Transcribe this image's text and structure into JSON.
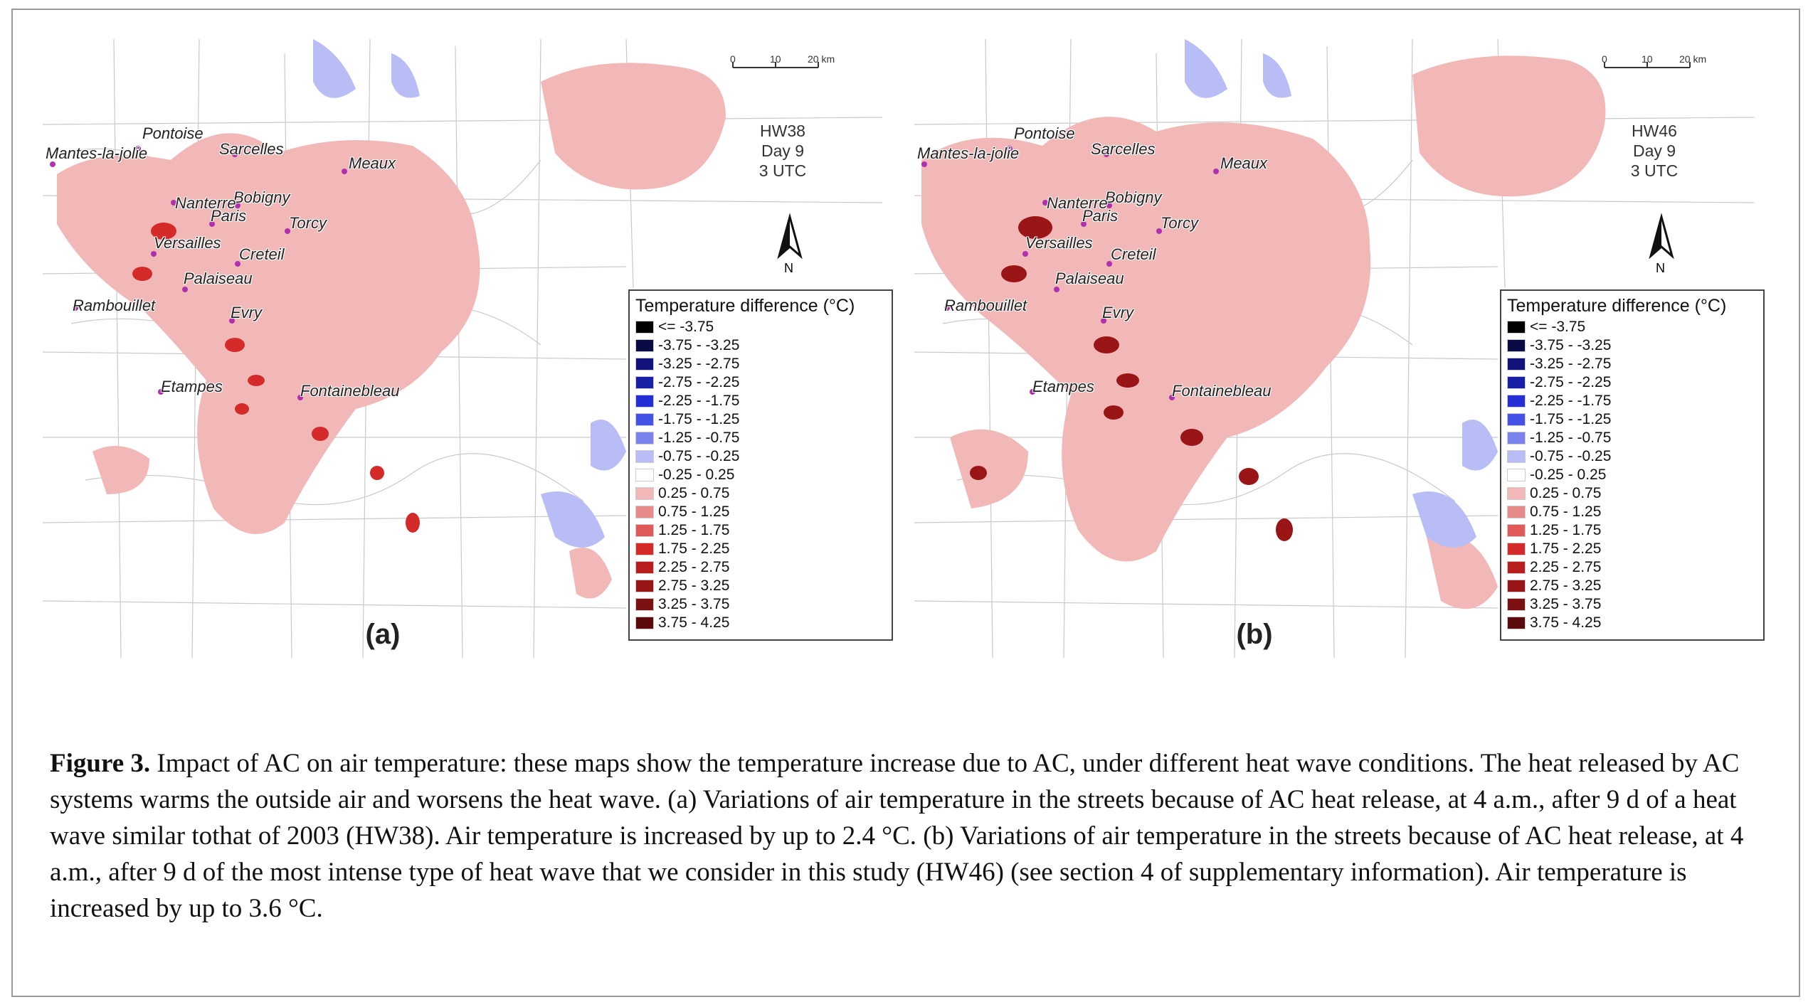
{
  "figure": {
    "caption_label": "Figure 3.",
    "caption_text": " Impact of AC on air temperature: these maps show the temperature increase due to AC, under different heat wave conditions. The heat released by AC systems warms the outside air and worsens the heat wave. (a) Variations of air temperature in the streets because of AC heat release, at 4 a.m., after 9 d of a heat wave similar tothat of 2003 (HW38). Air temperature is increased by up to 2.4 °C. (b) Variations of air temperature in the streets because of AC heat release, at 4 a.m., after 9 d of the most intense type of heat wave that we consider in this study (HW46) (see section 4 of supplementary information). Air temperature is increased by up to 3.6 °C."
  },
  "scale_bar": {
    "t0": "0",
    "t1": "10",
    "t2": "20 km"
  },
  "north_label": "N",
  "panels": [
    {
      "label": "(a)",
      "scenario": "HW38",
      "day": "Day 9",
      "time": "3 UTC"
    },
    {
      "label": "(b)",
      "scenario": "HW46",
      "day": "Day 9",
      "time": "3 UTC"
    }
  ],
  "cities": [
    "Pontoise",
    "Mantes-la-jolie",
    "Sarcelles",
    "Meaux",
    "Bobigny",
    "Nanterre",
    "Paris",
    "Torcy",
    "Versailles",
    "Creteil",
    "Palaiseau",
    "Rambouillet",
    "Evry",
    "Etampes",
    "Fontainebleau"
  ],
  "legend": {
    "title": "Temperature difference (°C)",
    "items": [
      {
        "label": "<= -3.75",
        "color": "#000000"
      },
      {
        "label": "-3.75 - -3.25",
        "color": "#0a0a45"
      },
      {
        "label": "-3.25 - -2.75",
        "color": "#12137a"
      },
      {
        "label": "-2.75 - -2.25",
        "color": "#1a1fa8"
      },
      {
        "label": "-2.25 - -1.75",
        "color": "#2430d6"
      },
      {
        "label": "-1.75 - -1.25",
        "color": "#4552e6"
      },
      {
        "label": "-1.25 - -0.75",
        "color": "#7a82ec"
      },
      {
        "label": "-0.75 - -0.25",
        "color": "#b8bdf5"
      },
      {
        "label": "-0.25 - 0.25",
        "color": "#ffffff"
      },
      {
        "label": "0.25 - 0.75",
        "color": "#f2b8b8"
      },
      {
        "label": "0.75 - 1.25",
        "color": "#e88a8a"
      },
      {
        "label": "1.25 - 1.75",
        "color": "#e05a5a"
      },
      {
        "label": "1.75 - 2.25",
        "color": "#d42a2a"
      },
      {
        "label": "2.25 - 2.75",
        "color": "#b81e1e"
      },
      {
        "label": "2.75 - 3.25",
        "color": "#9a1515"
      },
      {
        "label": "3.25 - 3.75",
        "color": "#7a1010"
      },
      {
        "label": "3.75 - 4.25",
        "color": "#5a0a0a"
      }
    ]
  }
}
